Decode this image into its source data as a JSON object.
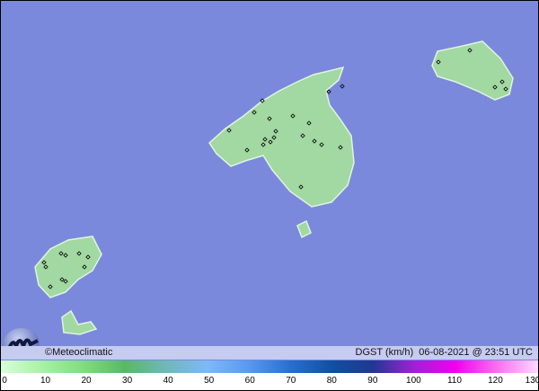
{
  "map": {
    "colors": {
      "sea": "#7b89dc",
      "land": "#a2d8a2",
      "land_edge": "#e0f4e0",
      "station": "#000000"
    },
    "islands": [
      "Mallorca",
      "Menorca",
      "Ibiza",
      "Formentera",
      "Cabrera"
    ]
  },
  "infobar": {
    "credit": "©Meteoclimatic",
    "variable": "DGST (km/h)",
    "timestamp": "06-08-2021 @ 23:51 UTC"
  },
  "legend": {
    "ticks": [
      "0",
      "10",
      "20",
      "30",
      "40",
      "50",
      "60",
      "70",
      "80",
      "90",
      "100",
      "110",
      "120",
      "130"
    ],
    "colors": [
      "#d8ffd8",
      "#a8f0a8",
      "#80dc80",
      "#58b868",
      "#70b8b8",
      "#80b8f8",
      "#5898f0",
      "#2870d0",
      "#1050a0",
      "#203890",
      "#a020d8",
      "#f000f0",
      "#f870f0",
      "#ffd8ff"
    ]
  }
}
